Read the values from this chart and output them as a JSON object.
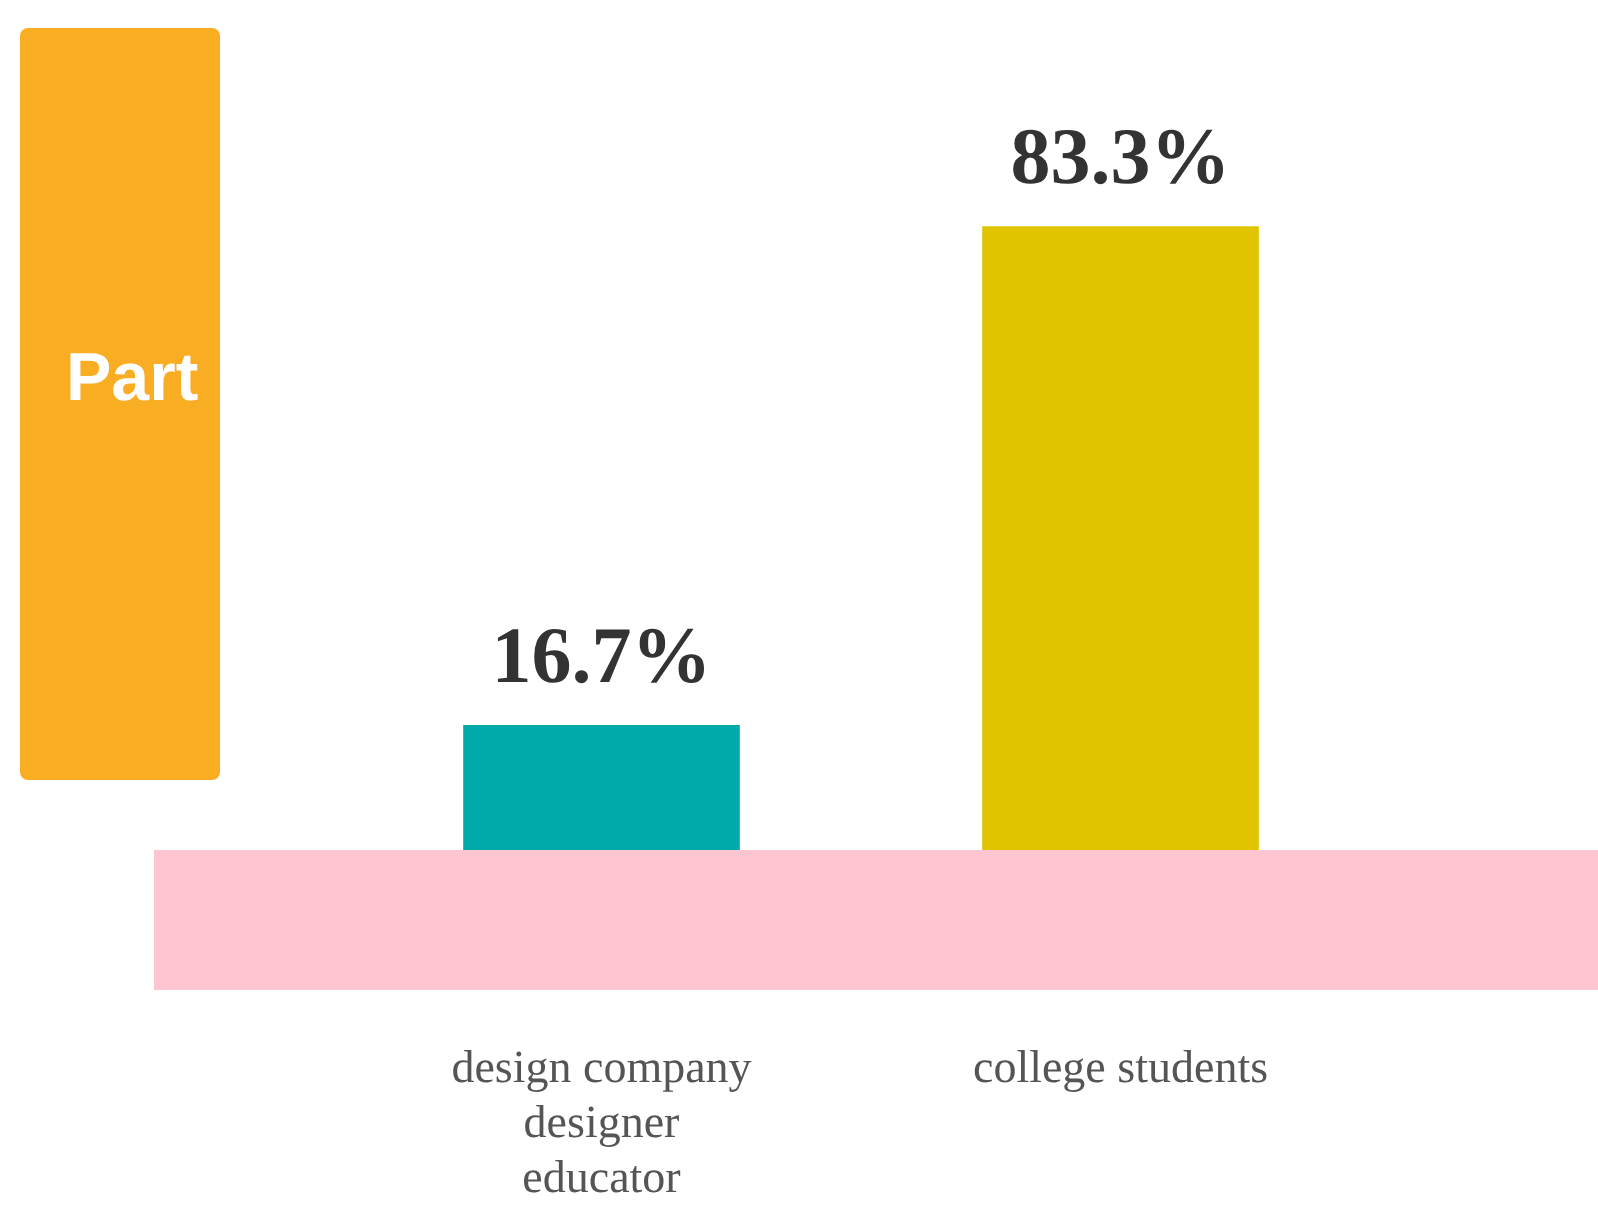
{
  "chart_data": {
    "type": "bar",
    "title": "Part",
    "categories": [
      "design company\ndesigner\neducator",
      "college students"
    ],
    "values": [
      16.7,
      83.3
    ],
    "colors": [
      "#00a9aa",
      "#e0c400"
    ],
    "data_labels": true,
    "value_labels": [
      "16.7%",
      "83.3%"
    ],
    "grid": false,
    "legend": false
  }
}
